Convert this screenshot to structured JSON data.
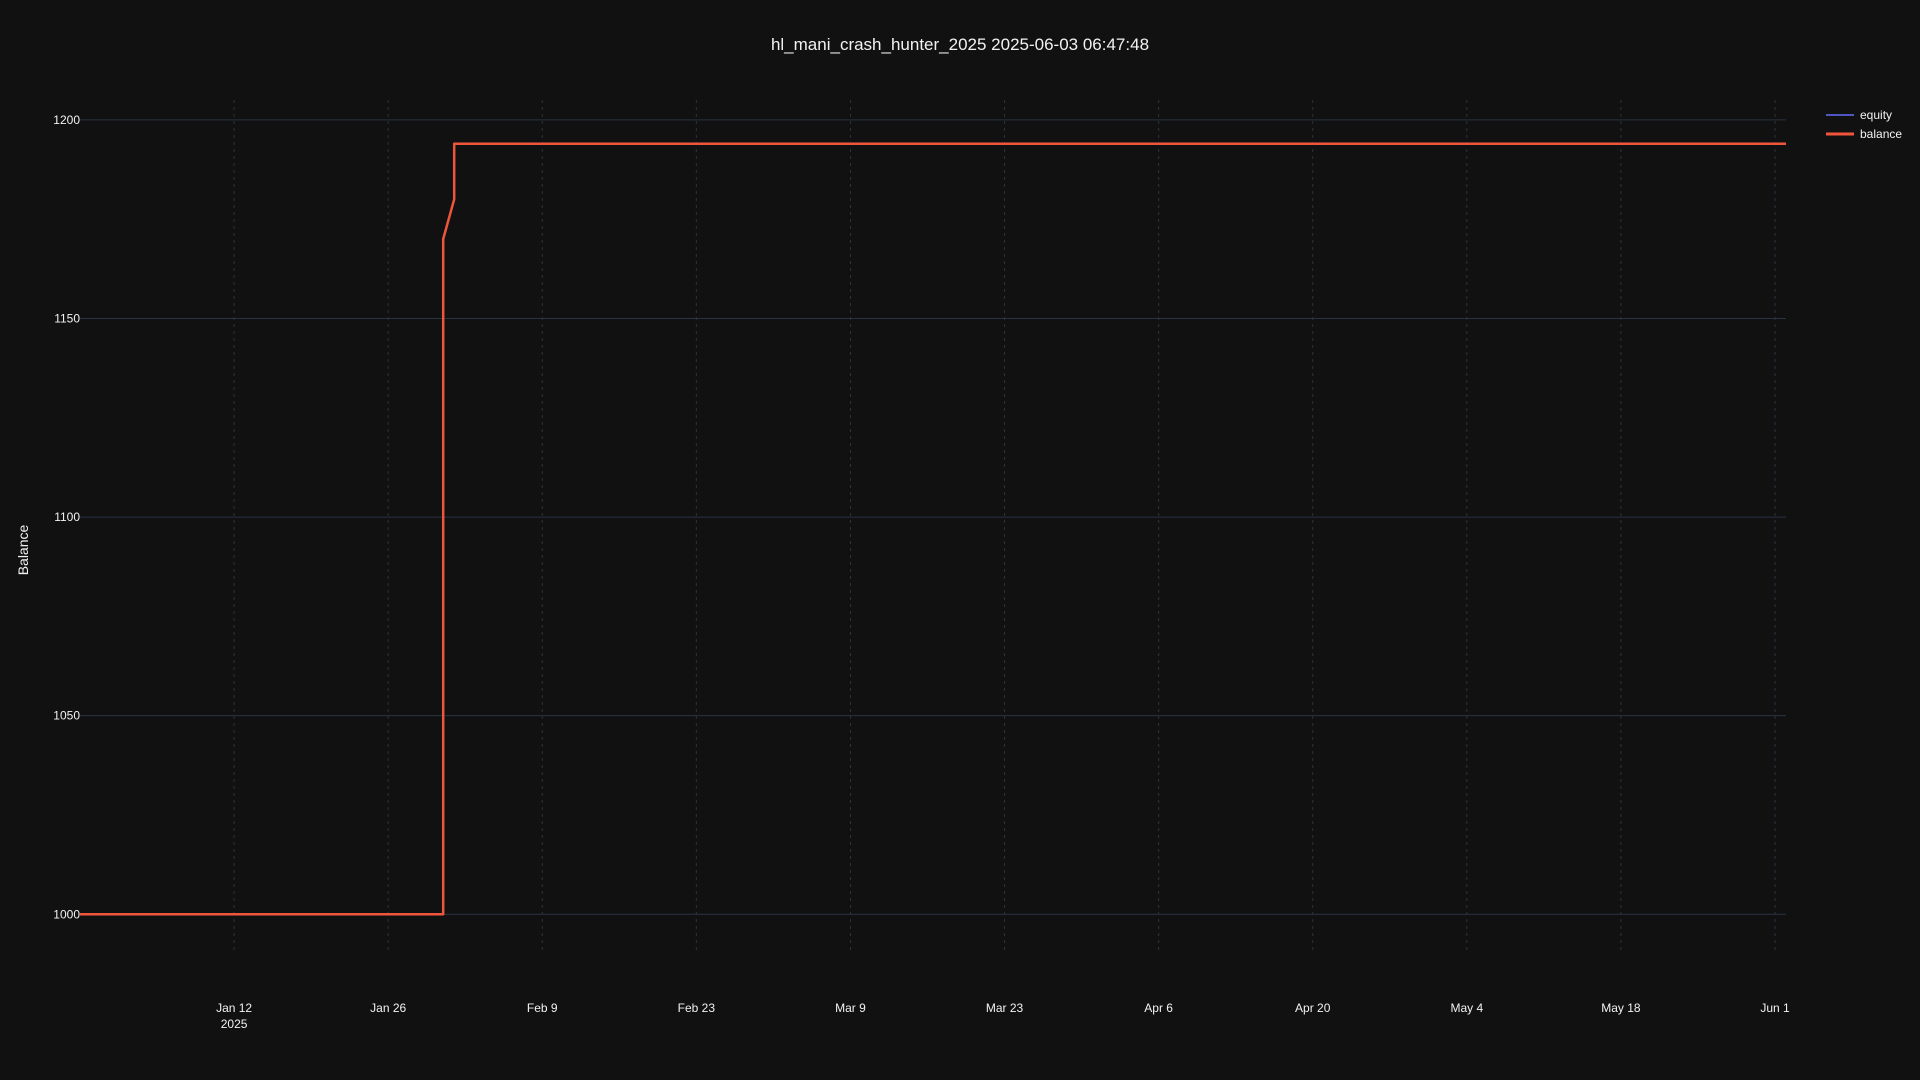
{
  "colors": {
    "background": "#111111",
    "grid": "#283442",
    "text": "#f2f2f2",
    "equity": "#636efa",
    "balance": "#ef553b"
  },
  "chart_data": {
    "type": "line",
    "title": "hl_mani_crash_hunter_2025 2025-06-03 06:47:48",
    "xlabel": "",
    "ylabel": "Balance",
    "xlim": [
      "2024-12-29",
      "2025-06-02"
    ],
    "ylim": [
      990,
      1205
    ],
    "x_ticks": [
      {
        "date": "2025-01-12",
        "label": "Jan 12",
        "sublabel": "2025"
      },
      {
        "date": "2025-01-26",
        "label": "Jan 26",
        "sublabel": ""
      },
      {
        "date": "2025-02-09",
        "label": "Feb 9",
        "sublabel": ""
      },
      {
        "date": "2025-02-23",
        "label": "Feb 23",
        "sublabel": ""
      },
      {
        "date": "2025-03-09",
        "label": "Mar 9",
        "sublabel": ""
      },
      {
        "date": "2025-03-23",
        "label": "Mar 23",
        "sublabel": ""
      },
      {
        "date": "2025-04-06",
        "label": "Apr 6",
        "sublabel": ""
      },
      {
        "date": "2025-04-20",
        "label": "Apr 20",
        "sublabel": ""
      },
      {
        "date": "2025-05-04",
        "label": "May 4",
        "sublabel": ""
      },
      {
        "date": "2025-05-18",
        "label": "May 18",
        "sublabel": ""
      },
      {
        "date": "2025-06-01",
        "label": "Jun 1",
        "sublabel": ""
      }
    ],
    "y_ticks": [
      1000,
      1050,
      1100,
      1150,
      1200
    ],
    "grid": true,
    "legend_position": "top-right",
    "series": [
      {
        "name": "equity",
        "color": "#636efa",
        "x": [
          "2024-12-29",
          "2025-01-31",
          "2025-01-31",
          "2025-02-01",
          "2025-02-01",
          "2025-06-02"
        ],
        "y": [
          1000,
          1000,
          1170,
          1180,
          1194,
          1194
        ]
      },
      {
        "name": "balance",
        "color": "#ef553b",
        "x": [
          "2024-12-29",
          "2025-01-31",
          "2025-01-31",
          "2025-02-01",
          "2025-02-01",
          "2025-06-02"
        ],
        "y": [
          1000,
          1000,
          1170,
          1180,
          1194,
          1194
        ]
      }
    ]
  }
}
